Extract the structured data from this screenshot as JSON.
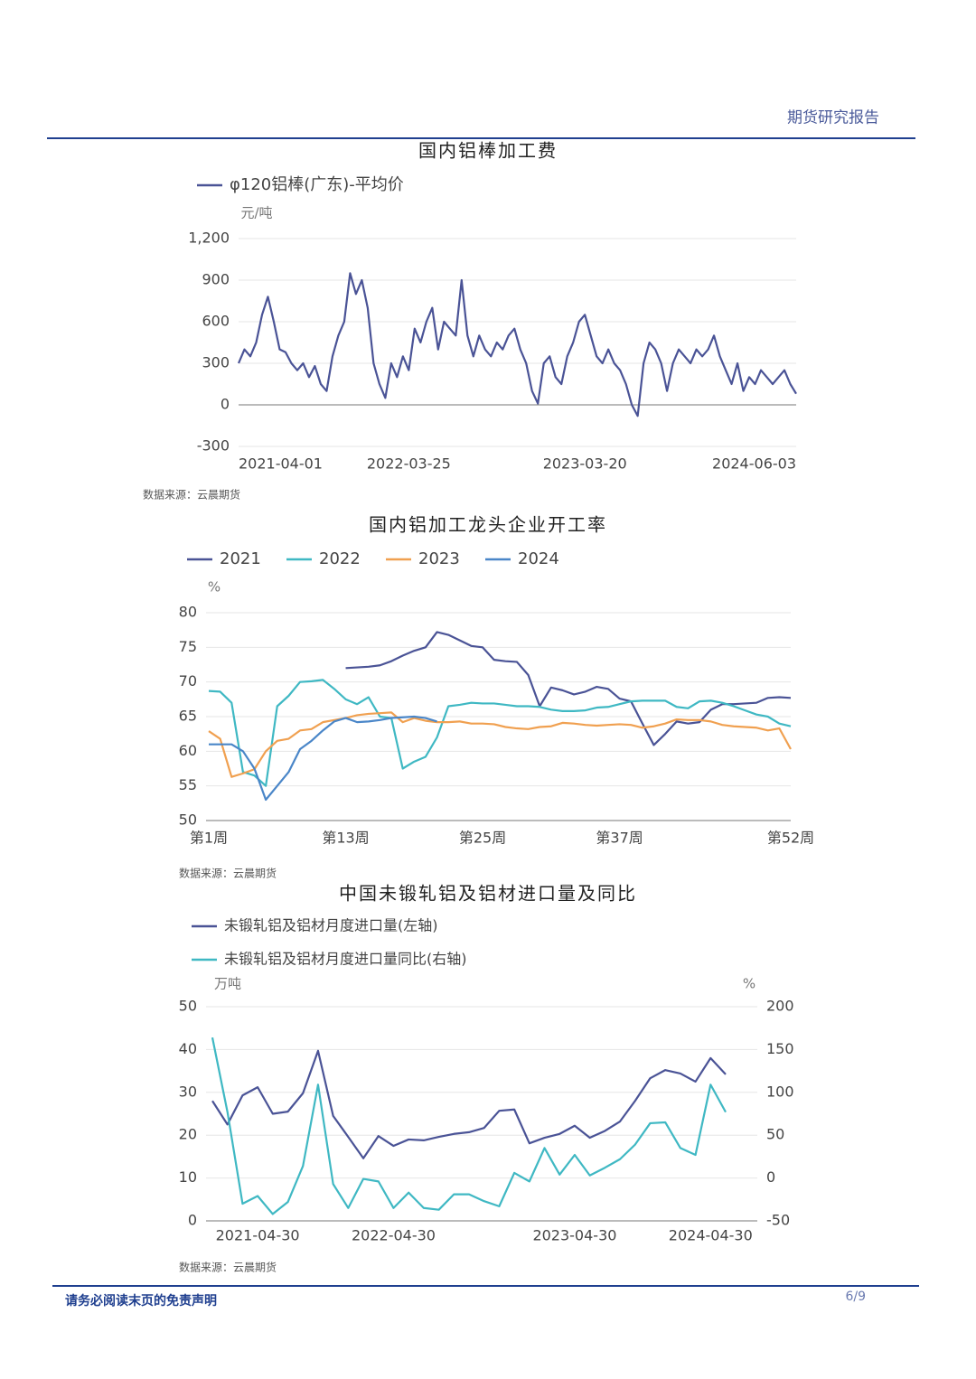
{
  "header": {
    "title": "期货研究报告"
  },
  "footer": {
    "disclaimer": "请务必阅读末页的免责声明",
    "page": "6/9"
  },
  "chart_data": [
    {
      "type": "line",
      "title": "国内铝棒加工费",
      "ylabel": "元/吨",
      "source": "数据来源：云晨期货",
      "categories": [
        "2021-04-01",
        null,
        null,
        null,
        null,
        null,
        null,
        null,
        null,
        null,
        null,
        null,
        null,
        null,
        null,
        null,
        null,
        null,
        null,
        null,
        null,
        null,
        null,
        null,
        null,
        null,
        null,
        null,
        null,
        "2022-03-25",
        null,
        null,
        null,
        null,
        null,
        null,
        null,
        null,
        null,
        null,
        null,
        null,
        null,
        null,
        null,
        null,
        null,
        null,
        null,
        null,
        null,
        null,
        null,
        null,
        null,
        null,
        null,
        null,
        null,
        "2023-03-20",
        null,
        null,
        null,
        null,
        null,
        null,
        null,
        null,
        null,
        null,
        null,
        null,
        null,
        null,
        null,
        null,
        null,
        null,
        null,
        null,
        null,
        null,
        null,
        null,
        null,
        null,
        null,
        null,
        null,
        null,
        null,
        null,
        null,
        null,
        null,
        "2024-06-03"
      ],
      "series": [
        {
          "name": "φ120铝棒(广东)-平均价",
          "color": "#4a5396",
          "values": [
            300,
            400,
            350,
            450,
            650,
            780,
            600,
            400,
            380,
            300,
            250,
            300,
            200,
            280,
            150,
            100,
            350,
            500,
            600,
            950,
            800,
            900,
            700,
            300,
            150,
            50,
            300,
            200,
            350,
            250,
            550,
            450,
            600,
            700,
            400,
            600,
            550,
            500,
            900,
            500,
            350,
            500,
            400,
            350,
            450,
            400,
            500,
            550,
            400,
            300,
            100,
            10,
            300,
            350,
            200,
            150,
            350,
            450,
            600,
            650,
            500,
            350,
            300,
            400,
            300,
            250,
            150,
            0,
            -80,
            300,
            450,
            400,
            300,
            100,
            300,
            400,
            350,
            300,
            400,
            350,
            400,
            500,
            350,
            250,
            150,
            300,
            100,
            200,
            150,
            250,
            200,
            150,
            200,
            250,
            150,
            80
          ]
        }
      ],
      "ylim": [
        -300,
        1200
      ],
      "yticks": [
        {
          "value": 1200,
          "label": "1,200"
        },
        900,
        600,
        300,
        0,
        -300
      ],
      "grid": true,
      "legend": "top-left"
    },
    {
      "type": "line",
      "title": "国内铝加工龙头企业开工率",
      "ylabel": "%",
      "source": "数据来源：云晨期货",
      "categories": [
        "第1周",
        null,
        null,
        null,
        null,
        null,
        null,
        null,
        null,
        null,
        null,
        null,
        "第13周",
        null,
        null,
        null,
        null,
        null,
        null,
        null,
        null,
        null,
        null,
        null,
        "第25周",
        null,
        null,
        null,
        null,
        null,
        null,
        null,
        null,
        null,
        null,
        null,
        "第37周",
        null,
        null,
        null,
        null,
        null,
        null,
        null,
        null,
        null,
        null,
        null,
        null,
        null,
        null,
        "第52周"
      ],
      "series": [
        {
          "name": "2021",
          "color": "#4a5396",
          "values": [
            null,
            null,
            null,
            null,
            null,
            null,
            null,
            null,
            null,
            null,
            null,
            null,
            72,
            72.1,
            72.2,
            72.4,
            73,
            73.8,
            74.5,
            75,
            77.2,
            76.8,
            76,
            75.2,
            75,
            73.2,
            73,
            72.9,
            71,
            66.5,
            69.2,
            68.8,
            68.2,
            68.6,
            69.3,
            69,
            67.6,
            67.2,
            64,
            60.9,
            62.5,
            64.3,
            64,
            64.2,
            66,
            66.8,
            66.8,
            66.9,
            67,
            67.7,
            67.8,
            67.7
          ]
        },
        {
          "name": "2022",
          "color": "#3fb8c3",
          "values": [
            68.7,
            68.6,
            67,
            57,
            56.5,
            55,
            66.5,
            68,
            70,
            70.1,
            70.3,
            69,
            67.5,
            66.8,
            67.8,
            65,
            64.8,
            57.5,
            58.5,
            59.2,
            62,
            66.5,
            66.7,
            67,
            66.9,
            66.9,
            66.7,
            66.5,
            66.5,
            66.4,
            66,
            65.8,
            65.8,
            65.9,
            66.3,
            66.4,
            66.8,
            67.2,
            67.3,
            67.3,
            67.3,
            66.4,
            66.2,
            67.2,
            67.3,
            67,
            66.5,
            65.9,
            65.3,
            65,
            64,
            63.6
          ]
        },
        {
          "name": "2023",
          "color": "#f0a050",
          "values": [
            62.9,
            61.8,
            56.3,
            56.8,
            57.4,
            60,
            61.5,
            61.8,
            63,
            63.2,
            64.2,
            64.5,
            64.8,
            65.2,
            65.4,
            65.5,
            65.6,
            64.2,
            64.8,
            64.4,
            64.2,
            64.2,
            64.3,
            64,
            64,
            63.9,
            63.5,
            63.3,
            63.2,
            63.5,
            63.6,
            64.1,
            64,
            63.8,
            63.7,
            63.8,
            63.9,
            63.8,
            63.4,
            63.6,
            64,
            64.6,
            64.5,
            64.5,
            64.3,
            63.8,
            63.6,
            63.5,
            63.4,
            63,
            63.3,
            60.3
          ]
        },
        {
          "name": "2024",
          "color": "#4a86c8",
          "values": [
            61,
            61,
            61,
            60,
            57.5,
            53,
            55,
            57,
            60.3,
            61.5,
            63,
            64.3,
            64.8,
            64.2,
            64.3,
            64.5,
            64.8,
            64.9,
            65,
            64.8,
            64.3,
            null,
            null,
            null,
            null,
            null,
            null,
            null,
            null,
            null,
            null,
            null,
            null,
            null,
            null,
            null,
            null,
            null,
            null,
            null,
            null,
            null,
            null,
            null,
            null,
            null,
            null,
            null,
            null,
            null,
            null,
            null
          ]
        }
      ],
      "ylim": [
        50,
        80
      ],
      "yticks": [
        80,
        75,
        70,
        65,
        60,
        55,
        50
      ],
      "grid": true,
      "legend": "top-left"
    },
    {
      "type": "line",
      "title": "中国未锻轧铝及铝材进口量及同比",
      "ylabel": "万吨",
      "y2label": "%",
      "source": "数据来源：云晨期货",
      "categories": [
        null,
        null,
        null,
        "2021-04-30",
        null,
        null,
        null,
        null,
        null,
        null,
        null,
        null,
        "2022-04-30",
        null,
        null,
        null,
        null,
        null,
        null,
        null,
        null,
        null,
        null,
        null,
        "2023-04-30",
        null,
        null,
        null,
        null,
        null,
        null,
        null,
        null,
        "2024-04-30",
        null
      ],
      "series": [
        {
          "name": "未锻轧铝及铝材月度进口量(左轴)",
          "color": "#4a5396",
          "values": [
            28,
            22.5,
            29.3,
            31.2,
            25,
            25.5,
            29.8,
            39.7,
            24.5,
            19.6,
            14.6,
            19.8,
            17.5,
            19,
            18.8,
            19.6,
            20.3,
            20.7,
            21.7,
            25.7,
            26,
            18.1,
            19.4,
            20.3,
            22.2,
            19.4,
            21,
            23.2,
            28,
            33.3,
            35.2,
            34.4,
            32.5,
            38,
            34.2
          ]
        },
        {
          "name": "未锻轧铝及铝材月度进口量同比(右轴)",
          "color": "#3fb8c3",
          "axis": "y2",
          "values": [
            164,
            77,
            -30,
            -21,
            -42,
            -28,
            14,
            109,
            -7,
            -35,
            -1,
            -4,
            -35,
            -17,
            -35,
            -37,
            -19,
            -19,
            -27,
            -33,
            6,
            -4,
            35,
            4,
            27,
            3,
            12,
            22,
            39,
            64,
            65,
            35,
            27,
            109,
            77
          ]
        }
      ],
      "ylim": [
        0,
        50
      ],
      "yticks": [
        50,
        40,
        30,
        20,
        10,
        0
      ],
      "y2lim": [
        -50,
        200
      ],
      "y2ticks": [
        200,
        150,
        100,
        50,
        0,
        -50
      ],
      "grid": true,
      "legend": "top-left"
    }
  ]
}
